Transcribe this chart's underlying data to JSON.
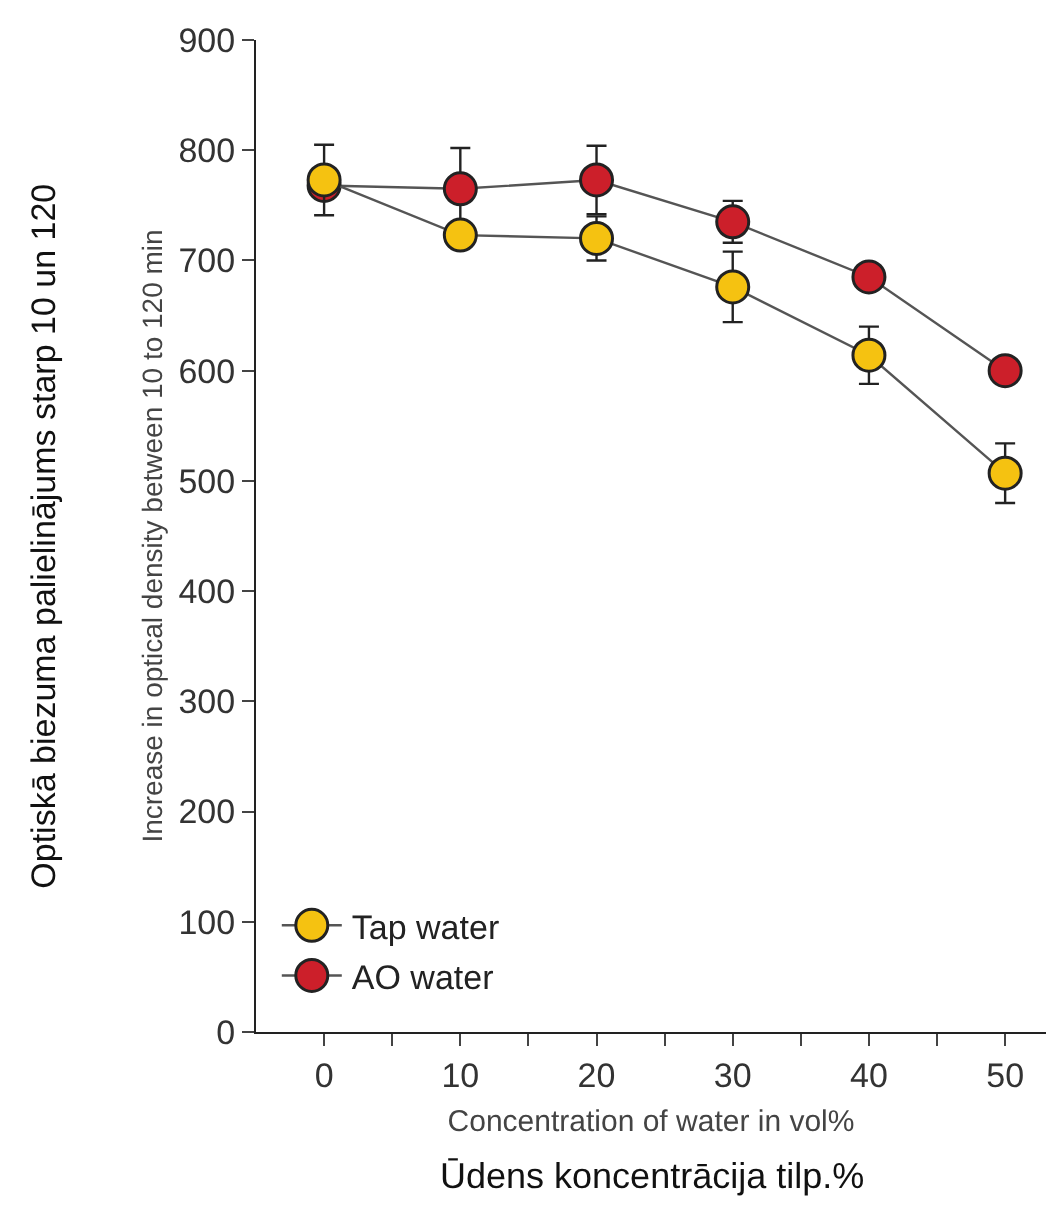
{
  "chart_data": {
    "type": "line",
    "xlabel": "Concentration of water in vol%",
    "ylabel": "Increase in optical density between 10 to 120 min",
    "annotations": [
      "Optiskā biezuma palielinājums starp 10 un 120",
      "Ūdens koncentrācija tilp.%"
    ],
    "x": [
      0,
      10,
      20,
      30,
      40,
      50
    ],
    "series": [
      {
        "name": "Tap water",
        "color": "#f5c211",
        "values": [
          773,
          723,
          720,
          676,
          614,
          507
        ],
        "errors": [
          32,
          null,
          20,
          32,
          26,
          27
        ]
      },
      {
        "name": "AO water",
        "color": "#cc1f2a",
        "values": [
          768,
          765,
          773,
          735,
          685,
          600
        ],
        "errors": [
          null,
          37,
          31,
          19,
          null,
          null
        ]
      }
    ],
    "xlim": [
      -5,
      53
    ],
    "xticks": [
      0,
      {
        "value": 5,
        "label": null
      },
      10,
      {
        "value": 15,
        "label": null
      },
      20,
      {
        "value": 25,
        "label": null
      },
      30,
      {
        "value": 35,
        "label": null
      },
      40,
      {
        "value": 45,
        "label": null
      },
      50
    ],
    "ylim": [
      0,
      900
    ],
    "yticks": [
      0,
      100,
      200,
      300,
      400,
      500,
      600,
      700,
      800,
      900
    ],
    "legend": "bottom left",
    "marker": "circle",
    "line_style": "solid"
  }
}
